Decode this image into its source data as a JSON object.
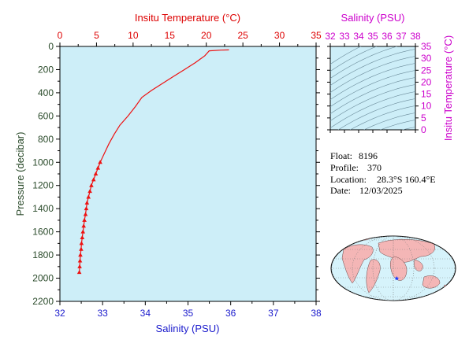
{
  "colors": {
    "plot_bg": "#cdeef8",
    "temperature": "#dd0000",
    "salinity": "#1a1acc",
    "pressure_axis": "#2a4a2a",
    "salinity_inset": "#cc00cc",
    "profile_line": "#ee1111",
    "land": "#f4b6b6",
    "ocean": "#d6f3fb"
  },
  "info": {
    "float_label": "Float:",
    "float": "8196",
    "profile_label": "Profile:",
    "profile": "370",
    "location_label": "Location:",
    "location": "28.3°S  160.4°E",
    "date_label": "Date:",
    "date": "12/03/2025"
  },
  "chart_data": [
    {
      "type": "line",
      "title": "",
      "top_axis": {
        "label": "Insitu Temperature (°C)",
        "range": [
          0,
          35
        ],
        "ticks": [
          "0",
          "5",
          "10",
          "15",
          "20",
          "25",
          "30",
          "35"
        ]
      },
      "bottom_axis": {
        "label": "Salinity (PSU)",
        "range": [
          32,
          38
        ],
        "ticks": [
          "32",
          "33",
          "34",
          "35",
          "36",
          "37",
          "38"
        ]
      },
      "left_axis": {
        "label": "Pressure (decibar)",
        "range": [
          0,
          2200
        ],
        "inverted": true,
        "ticks": [
          "0",
          "200",
          "400",
          "600",
          "800",
          "1000",
          "1200",
          "1400",
          "1600",
          "1800",
          "2000",
          "2200"
        ]
      },
      "grid": false,
      "series": [
        {
          "marker": "line",
          "x_axis": "temperature",
          "points": [
            [
              23.1,
              30
            ],
            [
              22.0,
              32
            ],
            [
              20.4,
              38
            ],
            [
              19.8,
              80
            ],
            [
              18.5,
              140
            ],
            [
              17.0,
              200
            ],
            [
              15.5,
              260
            ],
            [
              14.0,
              320
            ],
            [
              12.5,
              380
            ],
            [
              11.2,
              440
            ],
            [
              10.3,
              520
            ],
            [
              9.3,
              600
            ],
            [
              8.2,
              680
            ],
            [
              7.4,
              760
            ],
            [
              6.7,
              840
            ],
            [
              6.1,
              920
            ],
            [
              5.5,
              1000
            ]
          ]
        },
        {
          "marker": "triangle",
          "x_axis": "temperature",
          "points": [
            [
              5.5,
              1000
            ],
            [
              5.2,
              1050
            ],
            [
              4.9,
              1100
            ],
            [
              4.6,
              1150
            ],
            [
              4.3,
              1200
            ],
            [
              4.1,
              1250
            ],
            [
              3.9,
              1300
            ],
            [
              3.7,
              1350
            ],
            [
              3.6,
              1400
            ],
            [
              3.5,
              1450
            ],
            [
              3.35,
              1500
            ],
            [
              3.25,
              1550
            ],
            [
              3.15,
              1600
            ],
            [
              3.05,
              1650
            ],
            [
              2.95,
              1700
            ],
            [
              2.9,
              1750
            ],
            [
              2.8,
              1800
            ],
            [
              2.75,
              1850
            ],
            [
              2.7,
              1900
            ],
            [
              2.65,
              1950
            ]
          ]
        }
      ]
    },
    {
      "type": "scatter",
      "title": "",
      "top_axis": {
        "label": "Salinity (PSU)",
        "range": [
          32,
          38
        ],
        "ticks": [
          "32",
          "33",
          "34",
          "35",
          "36",
          "37",
          "38"
        ]
      },
      "right_axis": {
        "label": "Insitu Temperature (°C)",
        "range": [
          0,
          35
        ],
        "ticks": [
          "0",
          "5",
          "10",
          "15",
          "20",
          "25",
          "30",
          "35"
        ]
      },
      "grid": false,
      "contours": "density isolines"
    }
  ],
  "map": {
    "float_position": {
      "lat": -28.3,
      "lon": 160.4
    }
  }
}
